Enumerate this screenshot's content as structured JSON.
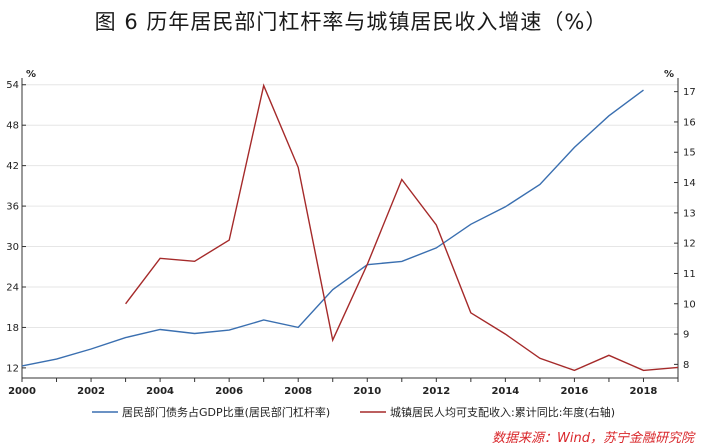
{
  "chart_data": {
    "type": "line",
    "title": "图 6   历年居民部门杠杆率与城镇居民收入增速（%）",
    "x_ticks": [
      "2000",
      "2002",
      "2004",
      "2006",
      "2008",
      "2010",
      "2012",
      "2014",
      "2016",
      "2018"
    ],
    "xlim": [
      2000,
      2019
    ],
    "y_left": {
      "unit": "%",
      "lim": [
        10.5,
        55
      ],
      "ticks": [
        "12",
        "18",
        "24",
        "30",
        "36",
        "42",
        "48",
        "54"
      ]
    },
    "y_right": {
      "unit": "%",
      "lim": [
        7.55,
        17.45
      ],
      "ticks": [
        "8",
        "9",
        "10",
        "11",
        "12",
        "13",
        "14",
        "15",
        "16",
        "17"
      ]
    },
    "series": [
      {
        "name": "居民部门债务占GDP比重(居民部门杠杆率)",
        "axis": "left",
        "color": "#3a6fb0",
        "x": [
          2000,
          2001,
          2002,
          2003,
          2004,
          2005,
          2006,
          2007,
          2008,
          2009,
          2010,
          2011,
          2012,
          2013,
          2014,
          2015,
          2016,
          2017,
          2018
        ],
        "y": [
          12.3,
          13.3,
          14.8,
          16.5,
          17.7,
          17.1,
          17.6,
          19.1,
          18.0,
          23.6,
          27.3,
          27.8,
          29.8,
          33.3,
          35.9,
          39.2,
          44.7,
          49.4,
          53.2
        ]
      },
      {
        "name": "城镇居民人均可支配收入:累计同比:年度(右轴)",
        "axis": "right",
        "color": "#a52a2a",
        "x": [
          2003,
          2004,
          2005,
          2006,
          2007,
          2008,
          2009,
          2010,
          2011,
          2012,
          2013,
          2014,
          2015,
          2016,
          2017,
          2018,
          2019
        ],
        "y": [
          10.0,
          11.5,
          11.4,
          12.1,
          17.2,
          14.5,
          8.8,
          11.3,
          14.1,
          12.6,
          9.7,
          9.0,
          8.2,
          7.8,
          8.3,
          7.8,
          7.9
        ]
      }
    ]
  },
  "source": "数据来源：Wind，苏宁金融研究院"
}
